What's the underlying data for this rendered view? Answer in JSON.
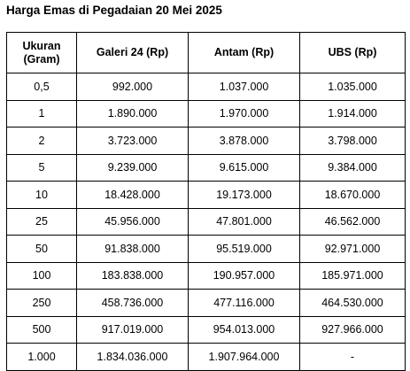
{
  "title": "Harga Emas di Pegadaian 20 Mei 2025",
  "table": {
    "headers": [
      "Ukuran (Gram)",
      "Galeri 24 (Rp)",
      "Antam (Rp)",
      "UBS (Rp)"
    ],
    "rows": [
      [
        "0,5",
        "992.000",
        "1.037.000",
        "1.035.000"
      ],
      [
        "1",
        "1.890.000",
        "1.970.000",
        "1.914.000"
      ],
      [
        "2",
        "3.723.000",
        "3.878.000",
        "3.798.000"
      ],
      [
        "5",
        "9.239.000",
        "9.615.000",
        "9.384.000"
      ],
      [
        "10",
        "18.428.000",
        "19.173.000",
        "18.670.000"
      ],
      [
        "25",
        "45.956.000",
        "47.801.000",
        "46.562.000"
      ],
      [
        "50",
        "91.838.000",
        "95.519.000",
        "92.971.000"
      ],
      [
        "100",
        "183.838.000",
        "190.957.000",
        "185.971.000"
      ],
      [
        "250",
        "458.736.000",
        "477.116.000",
        "464.530.000"
      ],
      [
        "500",
        "917.019.000",
        "954.013.000",
        "927.966.000"
      ],
      [
        "1.000",
        "1.834.036.000",
        "1.907.964.000",
        "-"
      ]
    ]
  }
}
